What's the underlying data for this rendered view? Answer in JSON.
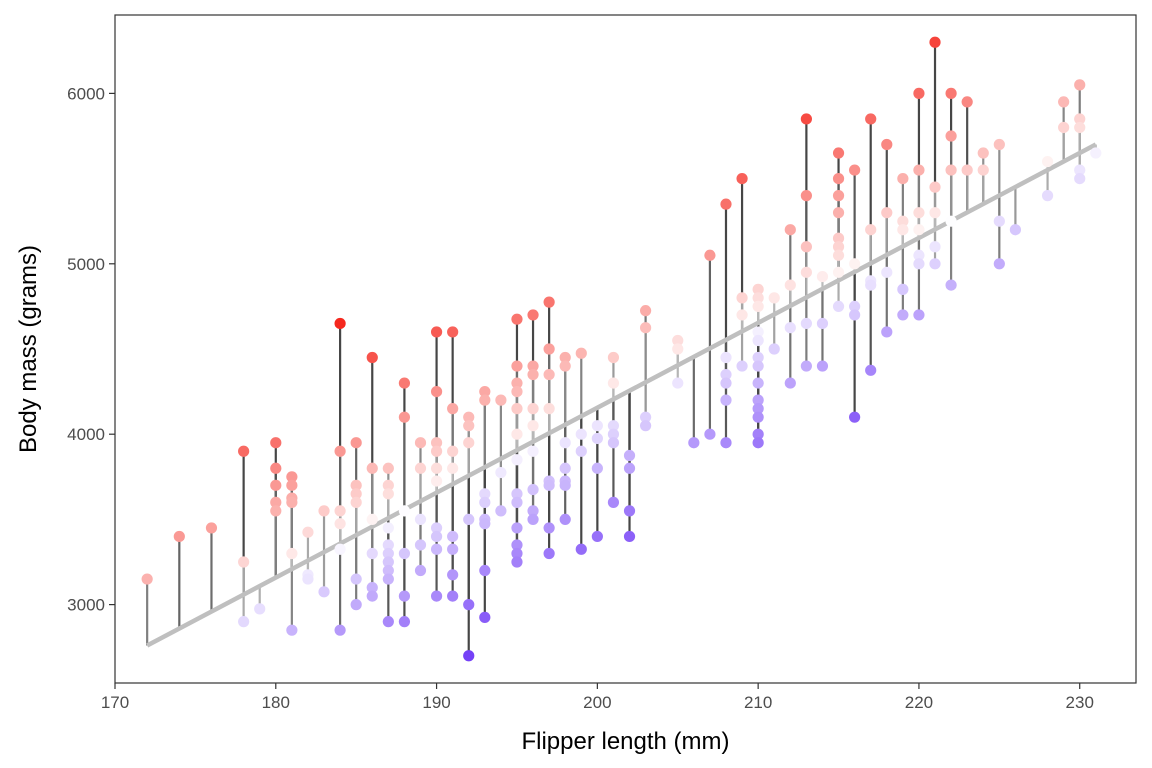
{
  "chart_data": {
    "type": "scatter",
    "title": "",
    "xlabel": "Flipper length (mm)",
    "ylabel": "Body mass (grams)",
    "xlim": [
      170,
      233.5
    ],
    "ylim": [
      2540,
      6460
    ],
    "x_ticks": [
      170,
      180,
      190,
      200,
      210,
      220,
      230
    ],
    "y_ticks": [
      3000,
      4000,
      5000,
      6000
    ],
    "grid": false,
    "legend": "none",
    "fit_line": {
      "x": [
        172,
        231
      ],
      "y": [
        2760,
        5700
      ],
      "color": "#bfbfbf"
    },
    "residual_color_scale": {
      "negative": "#5b1df5",
      "zero": "#ffffff",
      "positive": "#f5281e"
    },
    "points": [
      [
        172,
        3150
      ],
      [
        174,
        3400
      ],
      [
        176,
        3450
      ],
      [
        178,
        3900
      ],
      [
        178,
        3250
      ],
      [
        178,
        2900
      ],
      [
        179,
        2975
      ],
      [
        180,
        3950
      ],
      [
        180,
        3800
      ],
      [
        180,
        3700
      ],
      [
        180,
        3600
      ],
      [
        180,
        3550
      ],
      [
        181,
        3750
      ],
      [
        181,
        3700
      ],
      [
        181,
        3625
      ],
      [
        181,
        3600
      ],
      [
        181,
        3300
      ],
      [
        181,
        2850
      ],
      [
        182,
        3425
      ],
      [
        182,
        3175
      ],
      [
        182,
        3150
      ],
      [
        183,
        3550
      ],
      [
        183,
        3075
      ],
      [
        184,
        4650
      ],
      [
        184,
        3900
      ],
      [
        184,
        3550
      ],
      [
        184,
        3475
      ],
      [
        184,
        3325
      ],
      [
        184,
        2850
      ],
      [
        185,
        3950
      ],
      [
        185,
        3700
      ],
      [
        185,
        3650
      ],
      [
        185,
        3600
      ],
      [
        185,
        3150
      ],
      [
        185,
        3000
      ],
      [
        186,
        4450
      ],
      [
        186,
        3800
      ],
      [
        186,
        3500
      ],
      [
        186,
        3300
      ],
      [
        186,
        3100
      ],
      [
        186,
        3050
      ],
      [
        187,
        3800
      ],
      [
        187,
        3700
      ],
      [
        187,
        3650
      ],
      [
        187,
        3450
      ],
      [
        187,
        3350
      ],
      [
        187,
        3300
      ],
      [
        187,
        3250
      ],
      [
        187,
        3200
      ],
      [
        187,
        3150
      ],
      [
        187,
        2900
      ],
      [
        188,
        4300
      ],
      [
        188,
        4100
      ],
      [
        188,
        3550
      ],
      [
        188,
        3300
      ],
      [
        188,
        3050
      ],
      [
        188,
        2900
      ],
      [
        189,
        3950
      ],
      [
        189,
        3800
      ],
      [
        189,
        3500
      ],
      [
        189,
        3350
      ],
      [
        189,
        3200
      ],
      [
        190,
        4600
      ],
      [
        190,
        4250
      ],
      [
        190,
        3950
      ],
      [
        190,
        3900
      ],
      [
        190,
        3800
      ],
      [
        190,
        3725
      ],
      [
        190,
        3450
      ],
      [
        190,
        3400
      ],
      [
        190,
        3325
      ],
      [
        190,
        3050
      ],
      [
        191,
        4600
      ],
      [
        191,
        4150
      ],
      [
        191,
        3900
      ],
      [
        191,
        3800
      ],
      [
        191,
        3400
      ],
      [
        191,
        3325
      ],
      [
        191,
        3175
      ],
      [
        191,
        3050
      ],
      [
        192,
        4100
      ],
      [
        192,
        4050
      ],
      [
        192,
        3950
      ],
      [
        192,
        3500
      ],
      [
        192,
        3000
      ],
      [
        192,
        2700
      ],
      [
        193,
        4250
      ],
      [
        193,
        4200
      ],
      [
        193,
        3650
      ],
      [
        193,
        3600
      ],
      [
        193,
        3500
      ],
      [
        193,
        3475
      ],
      [
        193,
        3200
      ],
      [
        193,
        2925
      ],
      [
        194,
        4200
      ],
      [
        194,
        3775
      ],
      [
        194,
        3550
      ],
      [
        195,
        4675
      ],
      [
        195,
        4400
      ],
      [
        195,
        4300
      ],
      [
        195,
        4250
      ],
      [
        195,
        4150
      ],
      [
        195,
        4000
      ],
      [
        195,
        3850
      ],
      [
        195,
        3650
      ],
      [
        195,
        3600
      ],
      [
        195,
        3450
      ],
      [
        195,
        3350
      ],
      [
        195,
        3300
      ],
      [
        195,
        3250
      ],
      [
        196,
        4700
      ],
      [
        196,
        4400
      ],
      [
        196,
        4350
      ],
      [
        196,
        4150
      ],
      [
        196,
        4050
      ],
      [
        196,
        3900
      ],
      [
        196,
        3675
      ],
      [
        196,
        3550
      ],
      [
        196,
        3500
      ],
      [
        197,
        4775
      ],
      [
        197,
        4500
      ],
      [
        197,
        4350
      ],
      [
        197,
        4150
      ],
      [
        197,
        3725
      ],
      [
        197,
        3700
      ],
      [
        197,
        3450
      ],
      [
        197,
        3300
      ],
      [
        198,
        4450
      ],
      [
        198,
        4400
      ],
      [
        198,
        3950
      ],
      [
        198,
        3800
      ],
      [
        198,
        3725
      ],
      [
        198,
        3700
      ],
      [
        198,
        3500
      ],
      [
        199,
        4475
      ],
      [
        199,
        4000
      ],
      [
        199,
        3900
      ],
      [
        199,
        3325
      ],
      [
        200,
        4050
      ],
      [
        200,
        3975
      ],
      [
        200,
        3800
      ],
      [
        200,
        3400
      ],
      [
        201,
        4450
      ],
      [
        201,
        4300
      ],
      [
        201,
        4050
      ],
      [
        201,
        4000
      ],
      [
        201,
        3950
      ],
      [
        201,
        3600
      ],
      [
        202,
        3875
      ],
      [
        202,
        3800
      ],
      [
        202,
        3550
      ],
      [
        202,
        3400
      ],
      [
        203,
        4725
      ],
      [
        203,
        4625
      ],
      [
        203,
        4100
      ],
      [
        203,
        4050
      ],
      [
        205,
        4550
      ],
      [
        205,
        4500
      ],
      [
        205,
        4300
      ],
      [
        206,
        3950
      ],
      [
        207,
        5050
      ],
      [
        207,
        4000
      ],
      [
        208,
        5350
      ],
      [
        208,
        4450
      ],
      [
        208,
        4350
      ],
      [
        208,
        4300
      ],
      [
        208,
        4200
      ],
      [
        208,
        3950
      ],
      [
        209,
        5500
      ],
      [
        209,
        4800
      ],
      [
        209,
        4700
      ],
      [
        209,
        4400
      ],
      [
        210,
        4850
      ],
      [
        210,
        4800
      ],
      [
        210,
        4750
      ],
      [
        210,
        4600
      ],
      [
        210,
        4550
      ],
      [
        210,
        4450
      ],
      [
        210,
        4400
      ],
      [
        210,
        4300
      ],
      [
        210,
        4200
      ],
      [
        210,
        4150
      ],
      [
        210,
        4100
      ],
      [
        210,
        4000
      ],
      [
        210,
        3950
      ],
      [
        211,
        4800
      ],
      [
        211,
        4500
      ],
      [
        212,
        5200
      ],
      [
        212,
        4875
      ],
      [
        212,
        4625
      ],
      [
        212,
        4300
      ],
      [
        213,
        5850
      ],
      [
        213,
        5400
      ],
      [
        213,
        5100
      ],
      [
        213,
        4950
      ],
      [
        213,
        4650
      ],
      [
        213,
        4400
      ],
      [
        214,
        4925
      ],
      [
        214,
        4650
      ],
      [
        214,
        4400
      ],
      [
        215,
        5650
      ],
      [
        215,
        5500
      ],
      [
        215,
        5400
      ],
      [
        215,
        5300
      ],
      [
        215,
        5150
      ],
      [
        215,
        5100
      ],
      [
        215,
        5050
      ],
      [
        215,
        4950
      ],
      [
        215,
        4750
      ],
      [
        216,
        5550
      ],
      [
        216,
        5000
      ],
      [
        216,
        4750
      ],
      [
        216,
        4700
      ],
      [
        216,
        4100
      ],
      [
        217,
        5850
      ],
      [
        217,
        5200
      ],
      [
        217,
        4900
      ],
      [
        217,
        4875
      ],
      [
        217,
        4375
      ],
      [
        218,
        5700
      ],
      [
        218,
        5300
      ],
      [
        218,
        4950
      ],
      [
        218,
        4600
      ],
      [
        219,
        5500
      ],
      [
        219,
        5250
      ],
      [
        219,
        5200
      ],
      [
        219,
        4850
      ],
      [
        219,
        4700
      ],
      [
        220,
        6000
      ],
      [
        220,
        5550
      ],
      [
        220,
        5300
      ],
      [
        220,
        5200
      ],
      [
        220,
        5050
      ],
      [
        220,
        5000
      ],
      [
        220,
        4700
      ],
      [
        221,
        6300
      ],
      [
        221,
        5450
      ],
      [
        221,
        5300
      ],
      [
        221,
        5100
      ],
      [
        221,
        5000
      ],
      [
        222,
        6000
      ],
      [
        222,
        5750
      ],
      [
        222,
        5550
      ],
      [
        222,
        5250
      ],
      [
        222,
        4875
      ],
      [
        223,
        5950
      ],
      [
        223,
        5550
      ],
      [
        224,
        5650
      ],
      [
        224,
        5550
      ],
      [
        225,
        5700
      ],
      [
        225,
        5250
      ],
      [
        225,
        5000
      ],
      [
        226,
        5200
      ],
      [
        228,
        5600
      ],
      [
        228,
        5400
      ],
      [
        229,
        5950
      ],
      [
        229,
        5800
      ],
      [
        230,
        6050
      ],
      [
        230,
        5850
      ],
      [
        230,
        5800
      ],
      [
        230,
        5550
      ],
      [
        230,
        5500
      ],
      [
        231,
        5650
      ]
    ]
  }
}
